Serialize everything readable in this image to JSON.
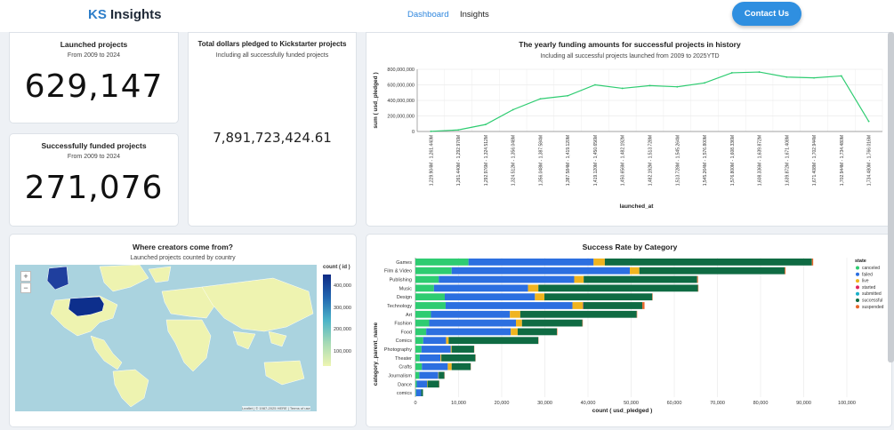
{
  "header": {
    "brand_ks": "KS",
    "brand_rest": " Insights",
    "nav_dashboard": "Dashboard",
    "nav_insights": "Insights",
    "contact": "Contact Us"
  },
  "launched": {
    "title": "Launched projects",
    "sub": "From 2009 to 2024",
    "value": "629,147"
  },
  "funded": {
    "title": "Successfully funded projects",
    "sub": "From 2009 to 2024",
    "value": "271,076"
  },
  "pledged": {
    "title": "Total dollars pledged to Kickstarter projects",
    "sub": "Including all successfully funded projects",
    "value": "7,891,723,424.61"
  },
  "map": {
    "title": "Where creators come from?",
    "sub": "Launched projects counted by country",
    "legend_title": "count ( id )",
    "legend_ticks": [
      "400,000",
      "300,000",
      "200,000",
      "100,000"
    ],
    "zoom_in": "+",
    "zoom_out": "−",
    "attribution": "Leaflet | © 1987-2025 HERE | Terms of use"
  },
  "chart_data": [
    {
      "type": "line",
      "title": "The yearly funding amounts for successful projects in history",
      "subtitle": "Including all successful projects launched from 2009 to 2025YTD",
      "xlabel": "launched_at",
      "ylabel": "sum ( usd_pledged )",
      "ylim": [
        0,
        800000000
      ],
      "yticks": [
        "0",
        "200,000,000",
        "400,000,000",
        "600,000,000",
        "800,000,000"
      ],
      "categories": [
        "1,229.904M - 1,261.440M",
        "1,261.440M - 1,292.976M",
        "1,292.976M - 1,324.512M",
        "1,324.512M - 1,356.048M",
        "1,356.048M - 1,387.584M",
        "1,387.584M - 1,419.120M",
        "1,419.120M - 1,450.656M",
        "1,450.656M - 1,482.192M",
        "1,482.192M - 1,513.728M",
        "1,513.728M - 1,545.264M",
        "1,545.264M - 1,576.800M",
        "1,576.800M - 1,608.336M",
        "1,608.336M - 1,639.872M",
        "1,639.872M - 1,671.408M",
        "1,671.408M - 1,702.944M",
        "1,702.944M - 1,734.480M",
        "1,734.480M - 1,766.016M"
      ],
      "values": [
        2000000,
        20000000,
        90000000,
        280000000,
        420000000,
        460000000,
        600000000,
        555000000,
        590000000,
        575000000,
        625000000,
        755000000,
        765000000,
        700000000,
        690000000,
        715000000,
        130000000
      ],
      "color": "#2ecc71",
      "grid": true
    },
    {
      "type": "bar",
      "orientation": "horizontal",
      "stacked": true,
      "title": "Success Rate by Category",
      "xlabel": "count ( usd_pledged )",
      "ylabel": "category_parent_name",
      "xlim": [
        0,
        100000
      ],
      "xticks": [
        "0",
        "10,000",
        "20,000",
        "30,000",
        "40,000",
        "50,000",
        "60,000",
        "70,000",
        "80,000",
        "90,000",
        "100,000"
      ],
      "legend_title": "state",
      "legend_position": "right",
      "categories": [
        "Games",
        "Film & Video",
        "Publishing",
        "Music",
        "Design",
        "Technology",
        "Art",
        "Fashion",
        "Food",
        "Comics",
        "Photography",
        "Theater",
        "Crafts",
        "Journalism",
        "Dance",
        "comics"
      ],
      "series": [
        {
          "name": "canceled",
          "color": "#2ecc71",
          "values": [
            12300,
            8400,
            5400,
            4300,
            6800,
            7000,
            3600,
            3200,
            2500,
            1800,
            1400,
            1000,
            1500,
            900,
            300,
            150
          ]
        },
        {
          "name": "failed",
          "color": "#2c6fe0",
          "values": [
            29000,
            41300,
            31400,
            21800,
            20900,
            29400,
            18300,
            20100,
            19600,
            5300,
            6800,
            4800,
            6000,
            4400,
            2400,
            1200
          ]
        },
        {
          "name": "live",
          "color": "#f0b41f",
          "values": [
            2600,
            2200,
            2200,
            2400,
            2200,
            2400,
            2400,
            1400,
            1600,
            600,
            200,
            200,
            900,
            100,
            100,
            0
          ]
        },
        {
          "name": "started",
          "color": "#e0245e",
          "values": [
            0,
            0,
            0,
            0,
            0,
            100,
            0,
            0,
            0,
            0,
            0,
            0,
            0,
            0,
            0,
            0
          ]
        },
        {
          "name": "submitted",
          "color": "#1ab0c9",
          "values": [
            0,
            0,
            0,
            0,
            0,
            0,
            0,
            0,
            0,
            0,
            0,
            0,
            0,
            0,
            0,
            0
          ]
        },
        {
          "name": "successful",
          "color": "#0f6b43",
          "values": [
            48000,
            33700,
            26300,
            37000,
            25000,
            13700,
            27000,
            14000,
            9100,
            20800,
            5200,
            7900,
            4400,
            1300,
            2700,
            400
          ]
        },
        {
          "name": "suspended",
          "color": "#e8662a",
          "values": [
            300,
            200,
            200,
            100,
            100,
            500,
            100,
            100,
            100,
            50,
            50,
            50,
            50,
            50,
            50,
            0
          ]
        }
      ]
    }
  ]
}
